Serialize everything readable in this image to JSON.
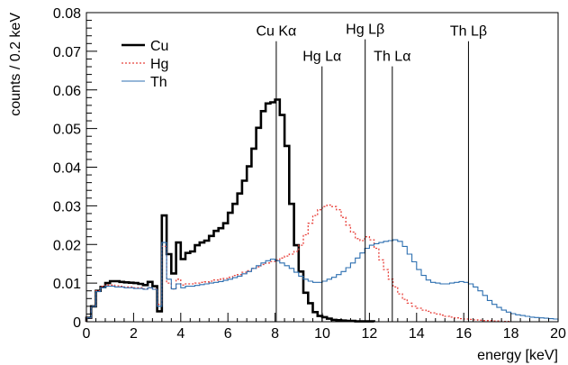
{
  "chart_data": {
    "type": "line",
    "title": "",
    "xlabel": "energy [keV]",
    "ylabel": "counts / 0.2 keV",
    "xlim": [
      0,
      20
    ],
    "ylim": [
      0,
      0.08
    ],
    "x_ticks": [
      0,
      2,
      4,
      6,
      8,
      10,
      12,
      14,
      16,
      18,
      20
    ],
    "y_ticks": [
      0,
      0.01,
      0.02,
      0.03,
      0.04,
      0.05,
      0.06,
      0.07,
      0.08
    ],
    "x_tick_labels": [
      "0",
      "2",
      "4",
      "6",
      "8",
      "10",
      "12",
      "14",
      "16",
      "18",
      "20"
    ],
    "y_tick_labels": [
      "0",
      "0.01",
      "0.02",
      "0.03",
      "0.04",
      "0.05",
      "0.06",
      "0.07",
      "0.08"
    ],
    "step_style": "histogram",
    "grid": false,
    "legend_position": "top-left",
    "series": [
      {
        "name": "Cu",
        "color": "#000000",
        "dash": "solid",
        "x": [
          0,
          0.2,
          0.4,
          0.6,
          0.8,
          1.0,
          1.2,
          1.4,
          1.6,
          1.8,
          2.0,
          2.2,
          2.4,
          2.6,
          2.8,
          3.0,
          3.2,
          3.4,
          3.6,
          3.8,
          4.0,
          4.2,
          4.4,
          4.6,
          4.8,
          5.0,
          5.2,
          5.4,
          5.6,
          5.8,
          6.0,
          6.2,
          6.4,
          6.6,
          6.8,
          7.0,
          7.2,
          7.4,
          7.6,
          7.8,
          8.0,
          8.2,
          8.4,
          8.6,
          8.8,
          9.0,
          9.2,
          9.4,
          9.6,
          9.8,
          10.0,
          10.2,
          10.4,
          10.6,
          10.8,
          11.0,
          11.2,
          11.4,
          11.6,
          11.8,
          12.0
        ],
        "values": [
          0.001,
          0.004,
          0.008,
          0.009,
          0.01,
          0.0105,
          0.0105,
          0.0103,
          0.0102,
          0.0101,
          0.01,
          0.0098,
          0.0095,
          0.0103,
          0.0092,
          0.0027,
          0.0275,
          0.0175,
          0.0125,
          0.0205,
          0.0162,
          0.0178,
          0.0182,
          0.0198,
          0.0205,
          0.021,
          0.0222,
          0.0235,
          0.0242,
          0.0255,
          0.0282,
          0.0305,
          0.0332,
          0.0365,
          0.0402,
          0.0448,
          0.0502,
          0.0545,
          0.0565,
          0.0568,
          0.0575,
          0.0535,
          0.0455,
          0.0305,
          0.0198,
          0.013,
          0.0075,
          0.0048,
          0.0025,
          0.0015,
          0.0012,
          0.0008,
          0.0005,
          0.0004,
          0.0003,
          0.0002,
          0.0002,
          0.0001,
          0.0001,
          0.0001,
          0.0001
        ]
      },
      {
        "name": "Hg",
        "color": "#e8403a",
        "dash": "dotted",
        "x": [
          0,
          0.2,
          0.4,
          0.6,
          0.8,
          1.0,
          1.2,
          1.4,
          1.6,
          1.8,
          2.0,
          2.2,
          2.4,
          2.6,
          2.8,
          3.0,
          3.2,
          3.4,
          3.6,
          3.8,
          4.0,
          4.2,
          4.4,
          4.6,
          4.8,
          5.0,
          5.2,
          5.4,
          5.6,
          5.8,
          6.0,
          6.2,
          6.4,
          6.6,
          6.8,
          7.0,
          7.2,
          7.4,
          7.6,
          7.8,
          8.0,
          8.2,
          8.4,
          8.6,
          8.8,
          9.0,
          9.2,
          9.4,
          9.6,
          9.8,
          10.0,
          10.2,
          10.4,
          10.6,
          10.8,
          11.0,
          11.2,
          11.4,
          11.6,
          11.8,
          12.0,
          12.2,
          12.4,
          12.6,
          12.8,
          13.0,
          13.2,
          13.4,
          13.6,
          13.8,
          14.0,
          14.2,
          14.4,
          14.6,
          14.8,
          15.0,
          15.2,
          15.4,
          15.6,
          15.8,
          16.0,
          16.2,
          16.4,
          16.6,
          16.8,
          17.0,
          17.2,
          17.4,
          17.6,
          17.8
        ],
        "values": [
          0.001,
          0.004,
          0.008,
          0.0092,
          0.0095,
          0.0095,
          0.0093,
          0.0092,
          0.009,
          0.009,
          0.0088,
          0.0088,
          0.0085,
          0.0088,
          0.0085,
          0.0045,
          0.0195,
          0.01,
          0.0085,
          0.011,
          0.0095,
          0.0098,
          0.0098,
          0.01,
          0.0102,
          0.0103,
          0.0105,
          0.0108,
          0.011,
          0.0112,
          0.0115,
          0.012,
          0.0122,
          0.0128,
          0.0132,
          0.0138,
          0.0142,
          0.0148,
          0.0152,
          0.0156,
          0.016,
          0.0165,
          0.017,
          0.0175,
          0.0182,
          0.0198,
          0.0225,
          0.0255,
          0.0275,
          0.029,
          0.0298,
          0.0302,
          0.0298,
          0.029,
          0.027,
          0.025,
          0.0232,
          0.0215,
          0.021,
          0.022,
          0.0212,
          0.019,
          0.016,
          0.0135,
          0.011,
          0.009,
          0.0072,
          0.0058,
          0.0048,
          0.004,
          0.0035,
          0.003,
          0.0027,
          0.0023,
          0.002,
          0.0017,
          0.0014,
          0.0012,
          0.001,
          0.0008,
          0.0007,
          0.0006,
          0.0005,
          0.0004,
          0.0003,
          0.0003,
          0.0002,
          0.0002,
          0.0001,
          0.0001
        ]
      },
      {
        "name": "Th",
        "color": "#2c6fb0",
        "dash": "solid",
        "x": [
          0,
          0.2,
          0.4,
          0.6,
          0.8,
          1.0,
          1.2,
          1.4,
          1.6,
          1.8,
          2.0,
          2.2,
          2.4,
          2.6,
          2.8,
          3.0,
          3.2,
          3.4,
          3.6,
          3.8,
          4.0,
          4.2,
          4.4,
          4.6,
          4.8,
          5.0,
          5.2,
          5.4,
          5.6,
          5.8,
          6.0,
          6.2,
          6.4,
          6.6,
          6.8,
          7.0,
          7.2,
          7.4,
          7.6,
          7.8,
          8.0,
          8.2,
          8.4,
          8.6,
          8.8,
          9.0,
          9.2,
          9.4,
          9.6,
          9.8,
          10.0,
          10.2,
          10.4,
          10.6,
          10.8,
          11.0,
          11.2,
          11.4,
          11.6,
          11.8,
          12.0,
          12.2,
          12.4,
          12.6,
          12.8,
          13.0,
          13.2,
          13.4,
          13.6,
          13.8,
          14.0,
          14.2,
          14.4,
          14.6,
          14.8,
          15.0,
          15.2,
          15.4,
          15.6,
          15.8,
          16.0,
          16.2,
          16.4,
          16.6,
          16.8,
          17.0,
          17.2,
          17.4,
          17.6,
          17.8,
          18.0,
          18.2,
          18.4,
          18.6,
          18.8,
          19.0,
          19.2,
          19.4,
          19.6,
          19.8
        ],
        "values": [
          0.001,
          0.004,
          0.0078,
          0.0088,
          0.0092,
          0.0092,
          0.009,
          0.009,
          0.0088,
          0.0088,
          0.0086,
          0.0086,
          0.0084,
          0.0088,
          0.0084,
          0.004,
          0.0205,
          0.011,
          0.0085,
          0.0098,
          0.0088,
          0.0092,
          0.0092,
          0.0094,
          0.0096,
          0.0098,
          0.01,
          0.0102,
          0.0104,
          0.0107,
          0.011,
          0.0114,
          0.0118,
          0.0124,
          0.013,
          0.0138,
          0.0145,
          0.0152,
          0.0158,
          0.0162,
          0.0158,
          0.0152,
          0.0145,
          0.0138,
          0.0128,
          0.0118,
          0.011,
          0.0105,
          0.0102,
          0.0102,
          0.0105,
          0.011,
          0.0115,
          0.0122,
          0.013,
          0.014,
          0.0152,
          0.0165,
          0.0178,
          0.019,
          0.0198,
          0.0202,
          0.0205,
          0.0208,
          0.021,
          0.0212,
          0.0208,
          0.0195,
          0.0175,
          0.0155,
          0.0135,
          0.012,
          0.0108,
          0.0102,
          0.01,
          0.0098,
          0.0098,
          0.01,
          0.0102,
          0.0104,
          0.0102,
          0.0098,
          0.009,
          0.008,
          0.0068,
          0.0055,
          0.0045,
          0.0037,
          0.003,
          0.0025,
          0.0021,
          0.0018,
          0.0016,
          0.0014,
          0.0012,
          0.0011,
          0.001,
          0.0009,
          0.0008,
          0.0007
        ]
      }
    ],
    "annotations": [
      {
        "label": "Cu Kα",
        "x": 8.05,
        "label_y": 0.074
      },
      {
        "label": "Hg Lα",
        "x": 9.99,
        "label_y": 0.0675
      },
      {
        "label": "Hg Lβ",
        "x": 11.82,
        "label_y": 0.0745
      },
      {
        "label": "Th Lα",
        "x": 12.97,
        "label_y": 0.0675
      },
      {
        "label": "Th Lβ",
        "x": 16.2,
        "label_y": 0.074
      }
    ]
  }
}
